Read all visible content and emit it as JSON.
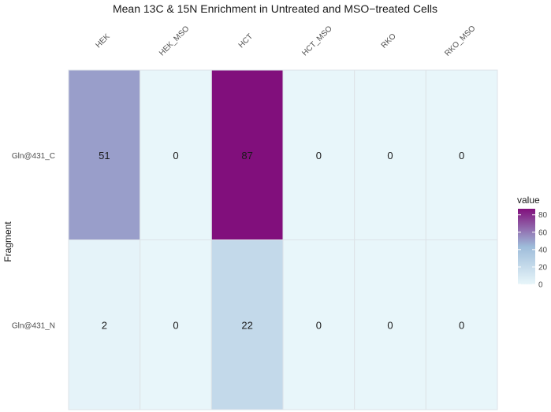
{
  "chart_data": {
    "type": "heatmap",
    "title": "Mean 13C & 15N Enrichment in Untreated and MSO−treated Cells",
    "xlabel": "",
    "ylabel": "Fragment",
    "x_categories": [
      "HEK",
      "HEK_MSO",
      "HCT",
      "HCT_MSO",
      "RKO",
      "RKO_MSO"
    ],
    "y_categories": [
      "Gln@431_C",
      "Gln@431_N"
    ],
    "values": [
      [
        51,
        0,
        87,
        0,
        0,
        0
      ],
      [
        2,
        0,
        22,
        0,
        0,
        0
      ]
    ],
    "legend": {
      "title": "value",
      "ticks": [
        0,
        20,
        40,
        60,
        80
      ],
      "range": [
        0,
        87
      ],
      "placement": "right"
    },
    "colors": {
      "low": "#e8f6fa",
      "mid": "#9ebcda",
      "high": "#810f7c",
      "grid": "#dde3e8"
    }
  }
}
